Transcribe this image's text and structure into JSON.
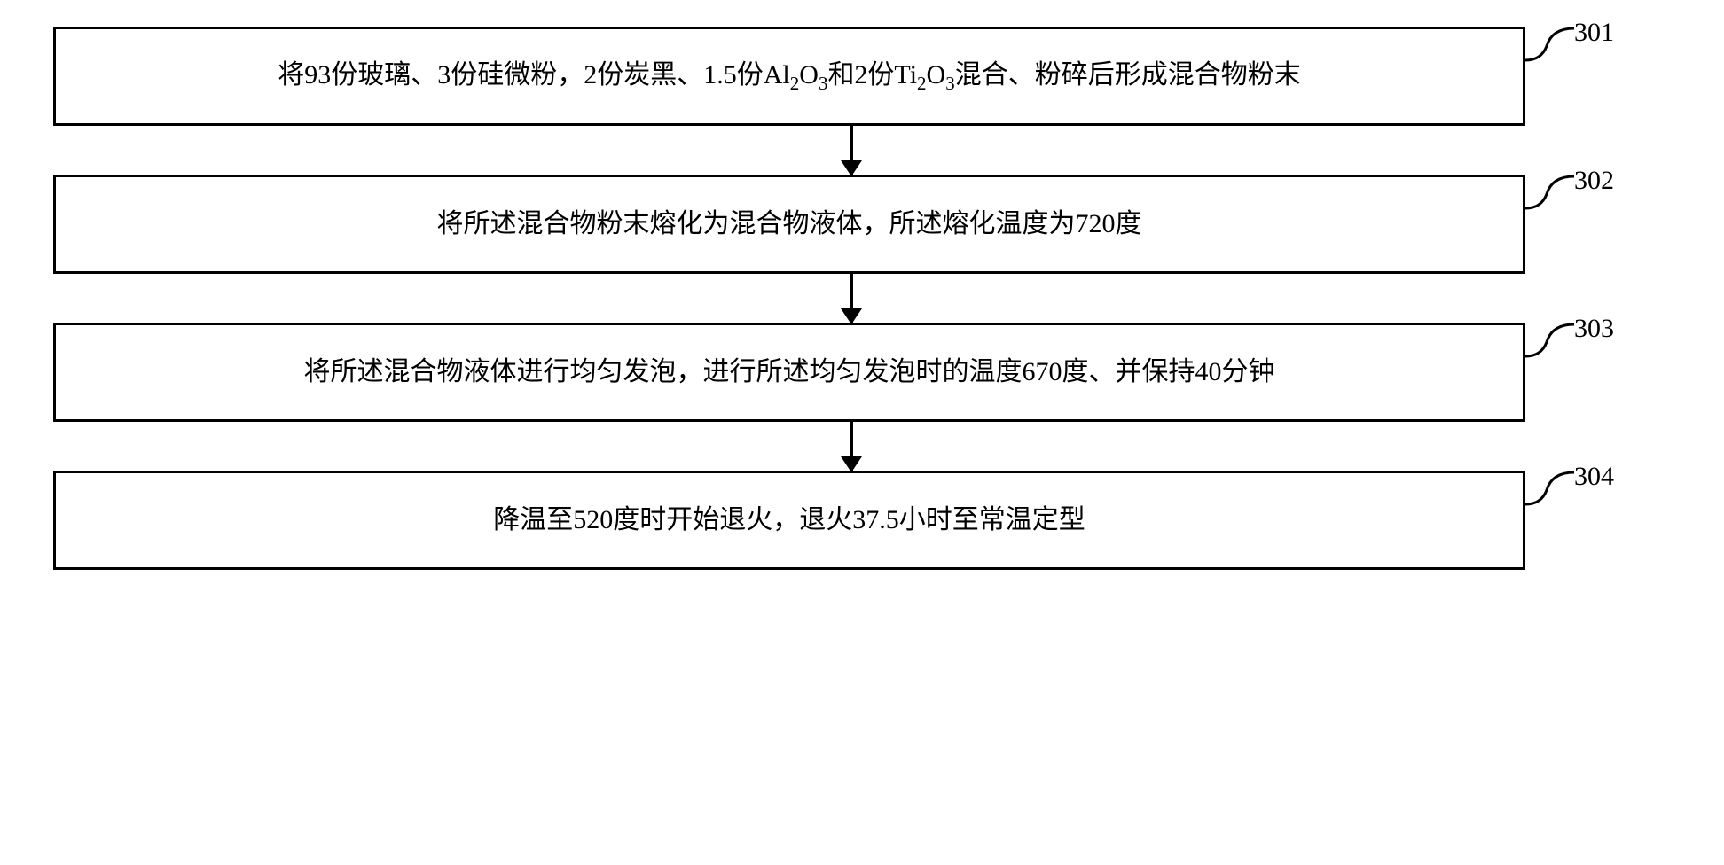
{
  "flowchart": {
    "type": "flowchart",
    "orientation": "vertical",
    "box_border_color": "#000000",
    "box_border_width": 3,
    "box_background": "#ffffff",
    "text_color": "#000000",
    "font_size_pt": 22,
    "font_family": "SimSun",
    "arrow_color": "#000000",
    "arrow_width": 3,
    "steps": [
      {
        "id": "301",
        "label": "301",
        "text_html": "将93份玻璃、3份硅微粉，2份炭黑、1.5份Al<sub>2</sub>O<sub>3</sub>和2份Ti<sub>2</sub>O<sub>3</sub>混合、粉碎后形成混合物粉末"
      },
      {
        "id": "302",
        "label": "302",
        "text_html": "将所述混合物粉末熔化为混合物液体，所述熔化温度为720度"
      },
      {
        "id": "303",
        "label": "303",
        "text_html": "将所述混合物液体进行均匀发泡，进行所述均匀发泡时的温度670度、并保持40分钟"
      },
      {
        "id": "304",
        "label": "304",
        "text_html": "降温至520度时开始退火，退火37.5小时至常温定型"
      }
    ]
  }
}
